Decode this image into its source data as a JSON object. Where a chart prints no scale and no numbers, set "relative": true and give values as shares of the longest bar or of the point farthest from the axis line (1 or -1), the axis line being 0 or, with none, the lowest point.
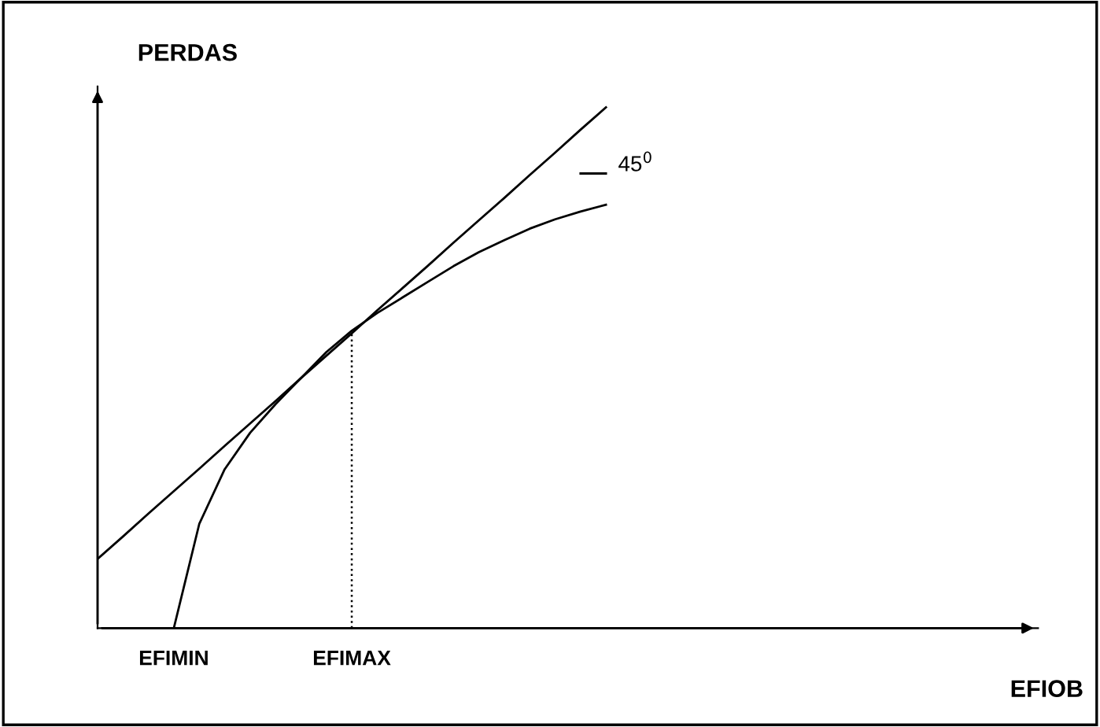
{
  "chart_data": {
    "type": "line",
    "relative": true,
    "ylabel": "PERDAS",
    "xlabel": "EFIOB",
    "categories": [
      null,
      null,
      null,
      "EFIMIN",
      null,
      null,
      null,
      null,
      null,
      null,
      "EFIMAX",
      null,
      null,
      null,
      null,
      null,
      null,
      null,
      null,
      null,
      null,
      null,
      null,
      null,
      null,
      null,
      null,
      null,
      null,
      null,
      null,
      null,
      null,
      null,
      null,
      null,
      null
    ],
    "series": [
      {
        "color": "#000000",
        "values": [
          0.133,
          0.176,
          0.22,
          0.263,
          0.306,
          0.35,
          0.393,
          0.436,
          0.48,
          0.523,
          0.566,
          0.61,
          0.653,
          0.696,
          0.74,
          0.783,
          0.826,
          0.87,
          0.913,
          0.957,
          1.0,
          null,
          null,
          null,
          null,
          null,
          null,
          null,
          null,
          null,
          null,
          null,
          null,
          null,
          null,
          null,
          null
        ]
      },
      {
        "color": "#000000",
        "values": [
          null,
          null,
          null,
          0,
          0.2,
          0.305,
          0.375,
          0.43,
          0.48,
          0.53,
          0.571,
          0.605,
          0.635,
          0.665,
          0.695,
          0.722,
          0.745,
          0.767,
          0.785,
          0.8,
          0.813,
          null,
          null,
          null,
          null,
          null,
          null,
          null,
          null,
          null,
          null,
          null,
          null,
          null,
          null,
          null,
          null
        ]
      },
      {
        "color": "#000000",
        "values": [
          null,
          null,
          null,
          null,
          null,
          null,
          null,
          null,
          null,
          null,
          null,
          null,
          null,
          null,
          null,
          null,
          null,
          null,
          null,
          0.873,
          0.873,
          null,
          null,
          null,
          null,
          null,
          null,
          null,
          null,
          null,
          null,
          null,
          null,
          null,
          null,
          null,
          null
        ]
      },
      {
        "color": "#000000",
        "x": [
          "EFIMAX",
          "EFIMAX"
        ],
        "values": [
          0,
          0.571
        ],
        "line_style": "dotted"
      }
    ],
    "annotations": [
      "45$^{0}$"
    ],
    "marker": "none"
  }
}
